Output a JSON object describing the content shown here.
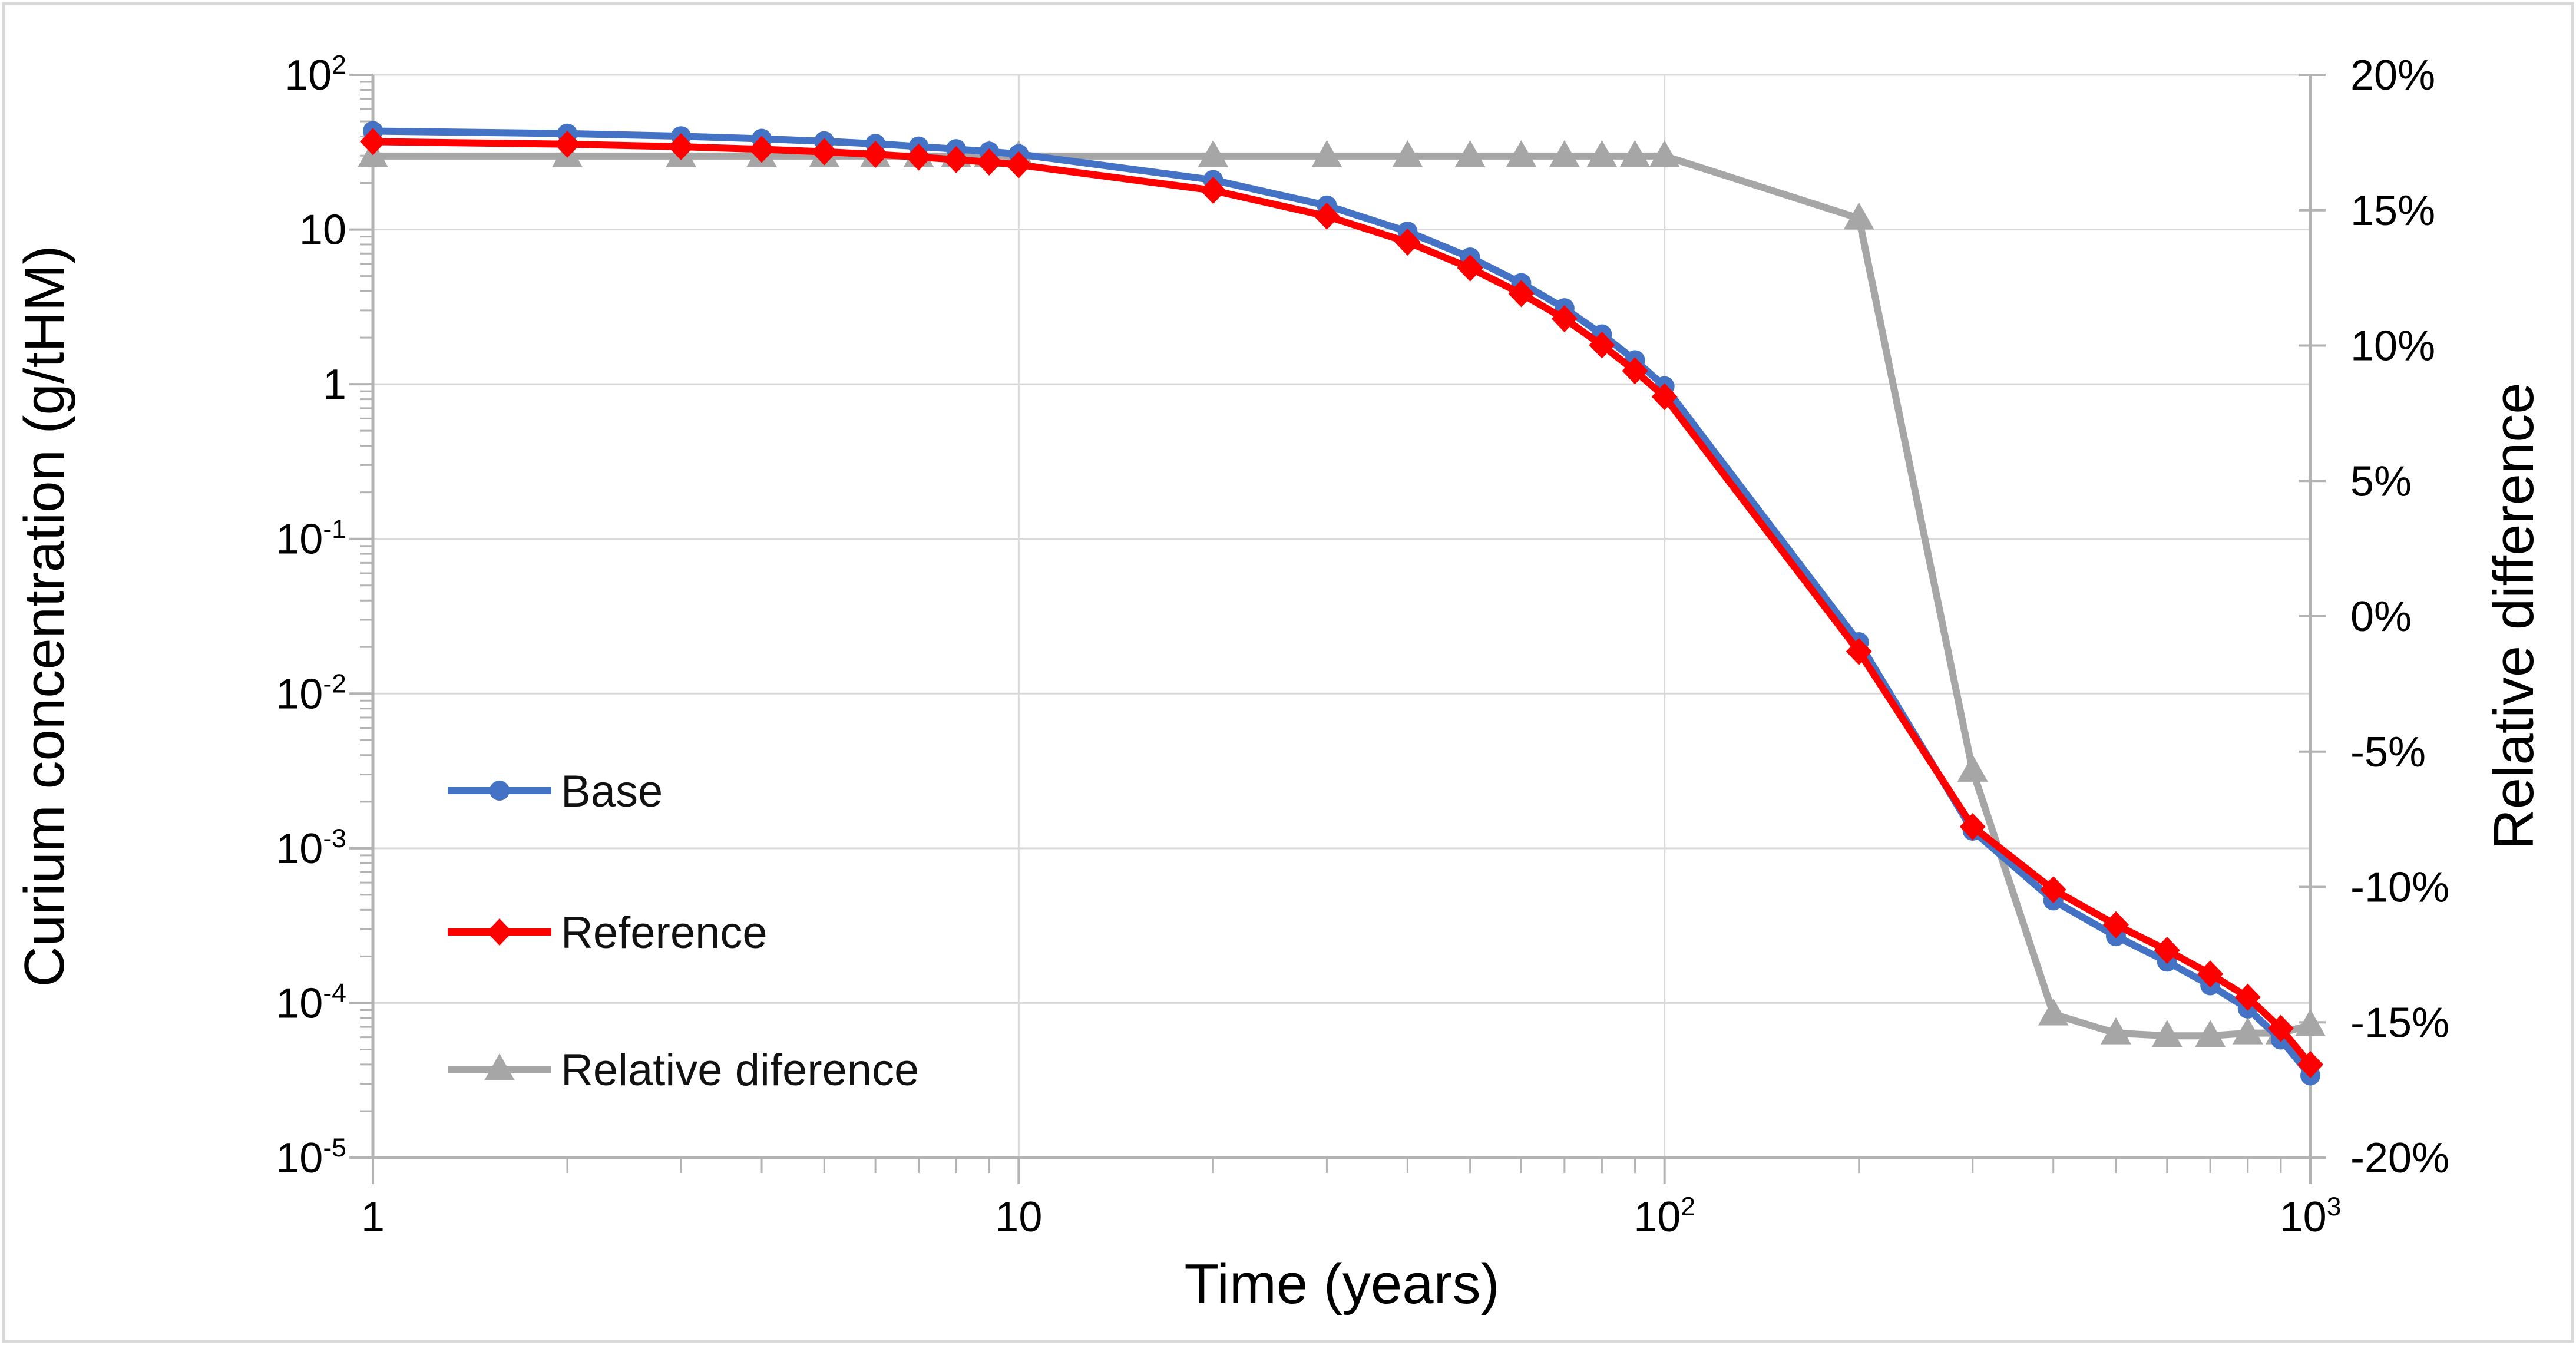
{
  "figure": {
    "background": "#FFFFFF",
    "border_color": "#D9D9D9"
  },
  "chart_data": {
    "type": "line",
    "title": "",
    "x": [
      1,
      2,
      3,
      4,
      5,
      6,
      7,
      8,
      9,
      10,
      20,
      30,
      40,
      50,
      60,
      70,
      80,
      90,
      100,
      200,
      300,
      400,
      500,
      600,
      700,
      800,
      900,
      1000
    ],
    "series": [
      {
        "name": "Base",
        "axis": "left",
        "marker": "circle",
        "color": "#4472C4",
        "z": 1,
        "values": [
          43.3,
          41.7,
          40.1,
          38.6,
          37.2,
          35.8,
          34.4,
          33.1,
          31.9,
          30.7,
          20.9,
          14.3,
          9.7,
          6.6,
          4.5,
          3.1,
          2.1,
          1.43,
          0.97,
          0.0215,
          0.0013,
          0.00046,
          0.00027,
          0.000185,
          0.00013,
          9.2e-05,
          5.8e-05,
          3.4e-05
        ]
      },
      {
        "name": "Reference",
        "axis": "left",
        "marker": "diamond",
        "color": "#FF0000",
        "z": 2,
        "values": [
          37.0,
          35.6,
          34.3,
          33.0,
          31.8,
          30.6,
          29.4,
          28.3,
          27.3,
          26.2,
          17.9,
          12.2,
          8.3,
          5.64,
          3.85,
          2.65,
          1.79,
          1.22,
          0.83,
          0.0187,
          0.00138,
          0.00054,
          0.00032,
          0.000219,
          0.000154,
          0.000109,
          6.85e-05,
          4e-05
        ]
      },
      {
        "name": "Relative diference",
        "axis": "right",
        "marker": "triangle",
        "color": "#A6A6A6",
        "z": 0,
        "values": [
          17,
          17,
          17,
          17,
          17,
          17,
          17,
          17,
          17,
          17,
          17,
          17,
          17,
          17,
          17,
          17,
          17,
          17,
          17,
          14.7,
          -5.7,
          -14.7,
          -15.4,
          -15.5,
          -15.5,
          -15.4,
          -15.4,
          -15.1
        ]
      }
    ],
    "x_axis": {
      "label": "Time (years)",
      "scale": "log",
      "range": [
        1,
        1000
      ],
      "ticks": [
        {
          "v": 1,
          "base": "1"
        },
        {
          "v": 10,
          "base": "10"
        },
        {
          "v": 100,
          "base": "10",
          "exp": "2"
        },
        {
          "v": 1000,
          "base": "10",
          "exp": "3"
        }
      ]
    },
    "y_axis_left": {
      "label": "Curium concentration (g/tHM)",
      "scale": "log",
      "range": [
        1e-05,
        100
      ],
      "ticks": [
        {
          "v": 100,
          "base": "10",
          "exp": "2"
        },
        {
          "v": 10,
          "base": "10"
        },
        {
          "v": 1,
          "base": "1"
        },
        {
          "v": 0.1,
          "base": "10",
          "exp": "-1"
        },
        {
          "v": 0.01,
          "base": "10",
          "exp": "-2"
        },
        {
          "v": 0.001,
          "base": "10",
          "exp": "-3"
        },
        {
          "v": 0.0001,
          "base": "10",
          "exp": "-4"
        },
        {
          "v": 1e-05,
          "base": "10",
          "exp": "-5"
        }
      ]
    },
    "y_axis_right": {
      "label": "Relative difference",
      "scale": "linear",
      "range_percent": [
        -20,
        20
      ],
      "tick_step_percent": 5,
      "tick_labels": [
        "20%",
        "15%",
        "10%",
        "5%",
        "0%",
        "-5%",
        "-10%",
        "-15%",
        "-20%"
      ]
    },
    "legend": {
      "position": "middle-left",
      "entries": [
        "Base",
        "Reference",
        "Relative diference"
      ]
    },
    "grid": true,
    "colors": {
      "gridline": "#D9D9D9",
      "axis": "#B3B3B3",
      "text": "#000000"
    }
  }
}
